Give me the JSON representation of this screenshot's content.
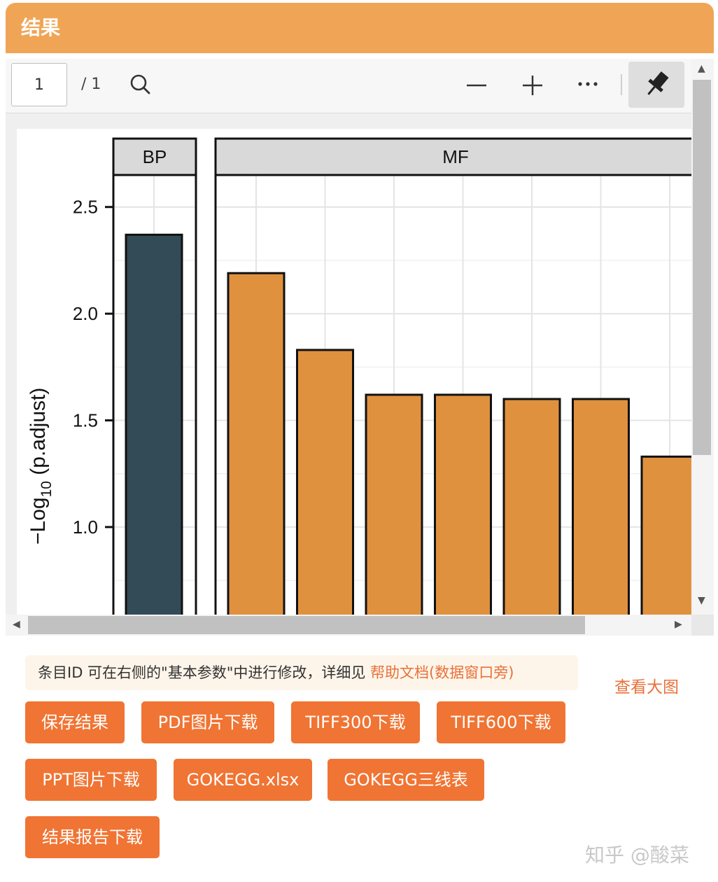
{
  "panel": {
    "title": "结果"
  },
  "viewer": {
    "page_current": "1",
    "page_total": "/ 1",
    "icons": [
      "search-icon",
      "zoom-out-icon",
      "zoom-in-icon",
      "more-icon",
      "pin-icon"
    ]
  },
  "chart_data": {
    "type": "bar",
    "ylabel_main": "−Log",
    "ylabel_sub": "10",
    "ylabel_tail": " (p.adjust)",
    "yticks": [
      "2.5",
      "2.0",
      "1.5",
      "1.0"
    ],
    "ytick_values": [
      2.5,
      2.0,
      1.5,
      1.0
    ],
    "ylim": [
      0.57,
      2.65
    ],
    "facets": [
      {
        "label": "BP",
        "values": [
          2.37
        ],
        "color": "#324b57"
      },
      {
        "label": "MF",
        "values": [
          2.19,
          1.83,
          1.62,
          1.62,
          1.6,
          1.6,
          1.33
        ],
        "color": "#e0913e"
      }
    ],
    "grid": true
  },
  "notice": {
    "text": "条目ID 可在右侧的\"基本参数\"中进行修改，详细见 ",
    "link": "帮助文档(数据窗口旁)"
  },
  "view_large": "查看大图",
  "buttons": {
    "save": "保存结果",
    "pdf": "PDF图片下载",
    "tiff300": "TIFF300下载",
    "tiff600": "TIFF600下载",
    "ppt": "PPT图片下载",
    "xlsx": "GOKEGG.xlsx",
    "three_line": "GOKEGG三线表",
    "report": "结果报告下载"
  },
  "watermark": "知乎 @酸菜"
}
